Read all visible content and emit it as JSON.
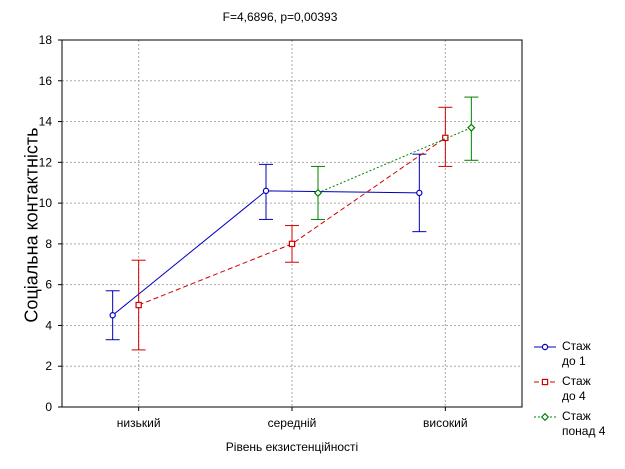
{
  "chart_data": {
    "type": "line",
    "title": "F=4,6896, p=0,00393",
    "xlabel": "Рівень екзистенційності",
    "ylabel": "Соціальна контактність",
    "categories": [
      "низький",
      "середній",
      "високий"
    ],
    "ylim": [
      0,
      18
    ],
    "yticks": [
      0,
      2,
      4,
      6,
      8,
      10,
      12,
      14,
      16,
      18
    ],
    "grid": true,
    "legend_position": "bottom-right",
    "series": [
      {
        "name_line1": "Стаж",
        "name_line2": "до 1",
        "color": "#0000c0",
        "dash": "solid",
        "marker": "circle",
        "values": [
          4.5,
          10.6,
          10.5
        ],
        "lower": [
          3.3,
          9.2,
          8.6
        ],
        "upper": [
          5.7,
          11.9,
          12.4
        ]
      },
      {
        "name_line1": "Стаж",
        "name_line2": "до 4",
        "color": "#d00000",
        "dash": "5,3",
        "marker": "square",
        "values": [
          5.0,
          8.0,
          13.2
        ],
        "lower": [
          2.8,
          7.1,
          11.8
        ],
        "upper": [
          7.2,
          8.9,
          14.7
        ]
      },
      {
        "name_line1": "Стаж",
        "name_line2": "понад 4",
        "color": "#008000",
        "dash": "2,2",
        "marker": "diamond",
        "values": [
          null,
          10.5,
          13.7
        ],
        "lower": [
          null,
          9.2,
          12.1
        ],
        "upper": [
          null,
          11.8,
          15.2
        ]
      }
    ]
  }
}
